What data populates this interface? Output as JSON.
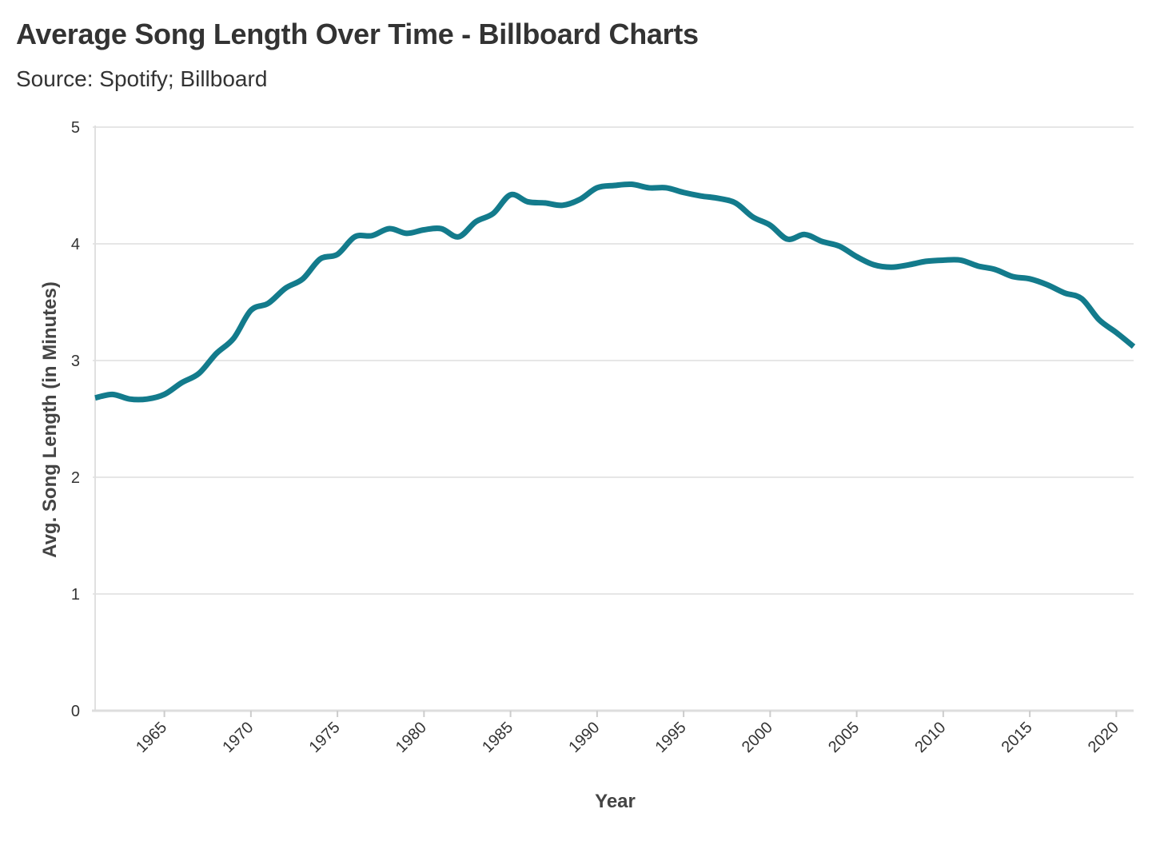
{
  "chart_data": {
    "type": "line",
    "title": "Average Song Length Over Time - Billboard Charts",
    "subtitle": "Source: Spotify; Billboard",
    "xlabel": "Year",
    "ylabel": "Avg. Song Length (in Minutes)",
    "xlim": [
      1961,
      2021
    ],
    "ylim": [
      0,
      5
    ],
    "x_ticks": [
      1965,
      1970,
      1975,
      1980,
      1985,
      1990,
      1995,
      2000,
      2005,
      2010,
      2015,
      2020
    ],
    "y_ticks": [
      0,
      1,
      2,
      3,
      4,
      5
    ],
    "grid": "horizontal",
    "line_color": "#137b8c",
    "series": [
      {
        "x": [
          1961,
          1962,
          1963,
          1964,
          1965,
          1966,
          1967,
          1968,
          1969,
          1970,
          1971,
          1972,
          1973,
          1974,
          1975,
          1976,
          1977,
          1978,
          1979,
          1980,
          1981,
          1982,
          1983,
          1984,
          1985,
          1986,
          1987,
          1988,
          1989,
          1990,
          1991,
          1992,
          1993,
          1994,
          1995,
          1996,
          1997,
          1998,
          1999,
          2000,
          2001,
          2002,
          2003,
          2004,
          2005,
          2006,
          2007,
          2008,
          2009,
          2010,
          2011,
          2012,
          2013,
          2014,
          2015,
          2016,
          2017,
          2018,
          2019,
          2020,
          2021
        ],
        "values": [
          2.68,
          2.71,
          2.67,
          2.67,
          2.71,
          2.81,
          2.89,
          3.06,
          3.19,
          3.43,
          3.49,
          3.62,
          3.7,
          3.87,
          3.91,
          4.06,
          4.07,
          4.13,
          4.09,
          4.12,
          4.13,
          4.06,
          4.19,
          4.26,
          4.42,
          4.36,
          4.35,
          4.33,
          4.38,
          4.48,
          4.5,
          4.51,
          4.48,
          4.48,
          4.44,
          4.41,
          4.39,
          4.35,
          4.23,
          4.16,
          4.04,
          4.08,
          4.02,
          3.98,
          3.89,
          3.82,
          3.8,
          3.82,
          3.85,
          3.86,
          3.86,
          3.81,
          3.78,
          3.72,
          3.7,
          3.65,
          3.58,
          3.53,
          3.35,
          3.24,
          3.12
        ]
      }
    ]
  }
}
